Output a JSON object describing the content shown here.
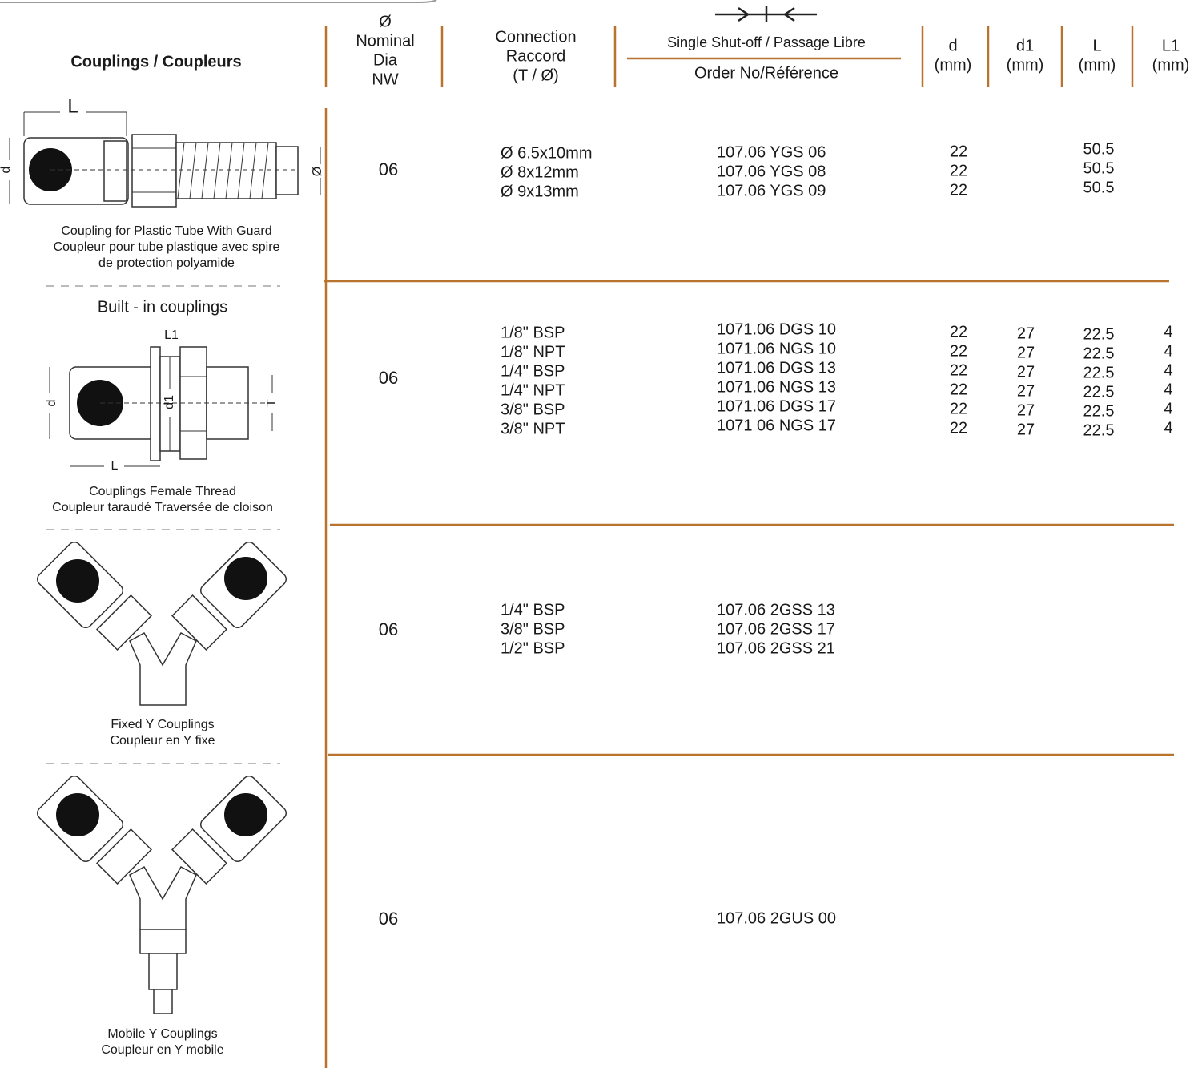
{
  "header": {
    "product": "Couplings / Coupleurs",
    "nominal": [
      "Ø",
      "Nominal",
      "Dia",
      "NW"
    ],
    "connection": [
      "Connection",
      "Raccord",
      "(T / Ø)"
    ],
    "shutoff": "Single Shut-off / Passage Libre",
    "order": "Order No/Référence",
    "d": [
      "d",
      "(mm)"
    ],
    "d1": [
      "d1",
      "(mm)"
    ],
    "L": [
      "L",
      "(mm)"
    ],
    "L1": [
      "L1",
      "(mm)"
    ]
  },
  "rows": [
    {
      "diagram_labels": [
        "L",
        "d",
        "Ø"
      ],
      "caption": [
        "Coupling for Plastic Tube With Guard",
        "Coupleur pour tube plastique avec spire",
        "de protection polyamide"
      ],
      "nw": "06",
      "connection": [
        "Ø 6.5x10mm",
        "Ø 8x12mm",
        "Ø 9x13mm"
      ],
      "order": [
        "107.06 YGS 06",
        "107.06 YGS 08",
        "107.06 YGS 09"
      ],
      "d": [
        "22",
        "22",
        "22"
      ],
      "L": [
        "50.5",
        "50.5",
        "50.5"
      ]
    },
    {
      "title": "Built - in couplings",
      "diagram_labels": [
        "L1",
        "d",
        "d1",
        "T",
        "L"
      ],
      "caption": [
        "Couplings Female Thread",
        "Coupleur taraudé Traversée de cloison"
      ],
      "nw": "06",
      "connection": [
        "1/8\" BSP",
        "1/8\" NPT",
        "1/4\" BSP",
        "1/4\" NPT",
        "3/8\" BSP",
        "3/8\" NPT"
      ],
      "order": [
        "1071.06 DGS 10",
        "1071.06 NGS 10",
        "1071.06 DGS 13",
        "1071.06 NGS 13",
        "1071.06 DGS 17",
        "1071 06 NGS 17"
      ],
      "d": [
        "22",
        "22",
        "22",
        "22",
        "22",
        "22"
      ],
      "d1": [
        "27",
        "27",
        "27",
        "27",
        "27",
        "27"
      ],
      "L": [
        "22.5",
        "22.5",
        "22.5",
        "22.5",
        "22.5",
        "22.5"
      ],
      "L1": [
        "4",
        "4",
        "4",
        "4",
        "4",
        "4"
      ]
    },
    {
      "caption": [
        "Fixed Y Couplings",
        "Coupleur en Y fixe"
      ],
      "nw": "06",
      "connection": [
        "1/4\" BSP",
        "3/8\" BSP",
        "1/2\" BSP"
      ],
      "order": [
        "107.06 2GSS 13",
        "107.06 2GSS 17",
        "107.06 2GSS 21"
      ]
    },
    {
      "caption": [
        "Mobile Y Couplings",
        "Coupleur en Y mobile"
      ],
      "nw": "06",
      "order": [
        "107.06 2GUS 00"
      ]
    }
  ]
}
